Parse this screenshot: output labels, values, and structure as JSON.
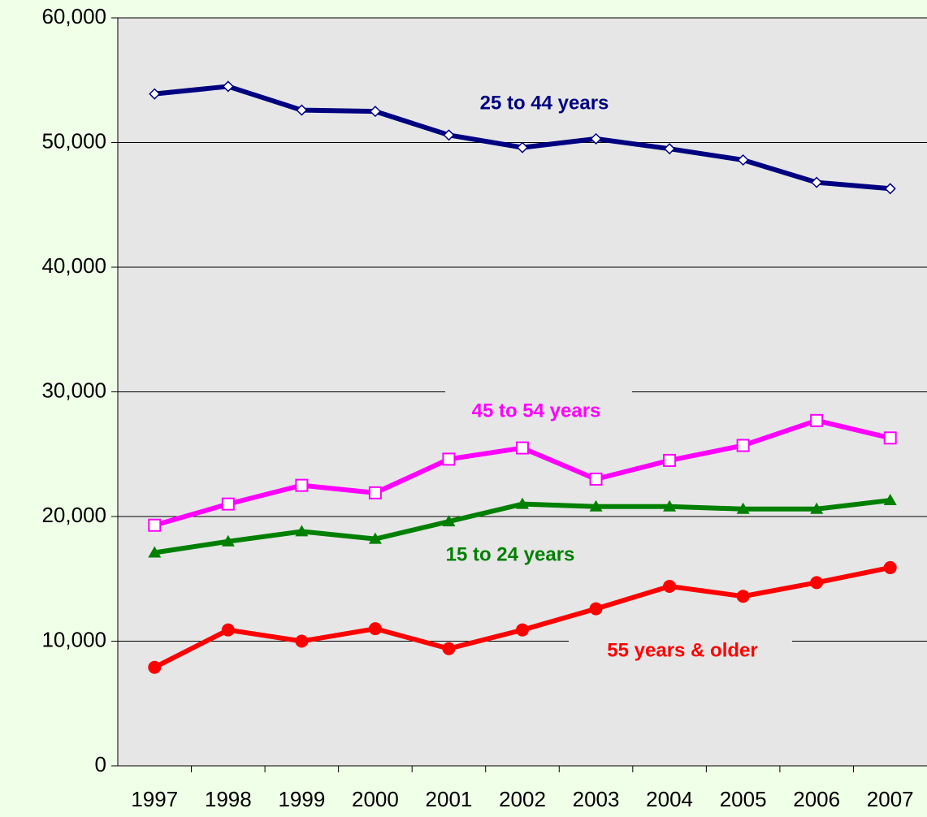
{
  "chart_data": {
    "type": "line",
    "categories": [
      "1997",
      "1998",
      "1999",
      "2000",
      "2001",
      "2002",
      "2003",
      "2004",
      "2005",
      "2006",
      "2007"
    ],
    "series": [
      {
        "name": "25 to 44 years",
        "color": "#000080",
        "marker": "diamond",
        "values": [
          53900,
          54500,
          52600,
          52500,
          50600,
          49600,
          50300,
          49500,
          48600,
          46800,
          46300
        ]
      },
      {
        "name": "45 to 54 years",
        "color": "#ff00ff",
        "marker": "square",
        "values": [
          19300,
          21000,
          22500,
          21900,
          24600,
          25500,
          23000,
          24500,
          25700,
          27700,
          26300
        ]
      },
      {
        "name": "15 to 24 years",
        "color": "#008000",
        "marker": "triangle",
        "values": [
          17100,
          18000,
          18800,
          18200,
          19600,
          21000,
          20800,
          20800,
          20600,
          20600,
          21300
        ]
      },
      {
        "name": "55 years & older",
        "color": "#ff0000",
        "marker": "circle",
        "values": [
          7900,
          10900,
          10000,
          11000,
          9400,
          10900,
          12600,
          14400,
          13600,
          14700,
          15900
        ]
      }
    ],
    "ylim": [
      0,
      60000
    ],
    "yticks": [
      0,
      {
        "value": 10000,
        "label": "10,000"
      },
      {
        "value": 20000,
        "label": "20,000"
      },
      {
        "value": 30000,
        "label": "30,000"
      },
      {
        "value": 40000,
        "label": "40,000"
      },
      {
        "value": 50000,
        "label": "50,000"
      },
      {
        "value": 60000,
        "label": "60,000"
      }
    ],
    "grid": true
  }
}
